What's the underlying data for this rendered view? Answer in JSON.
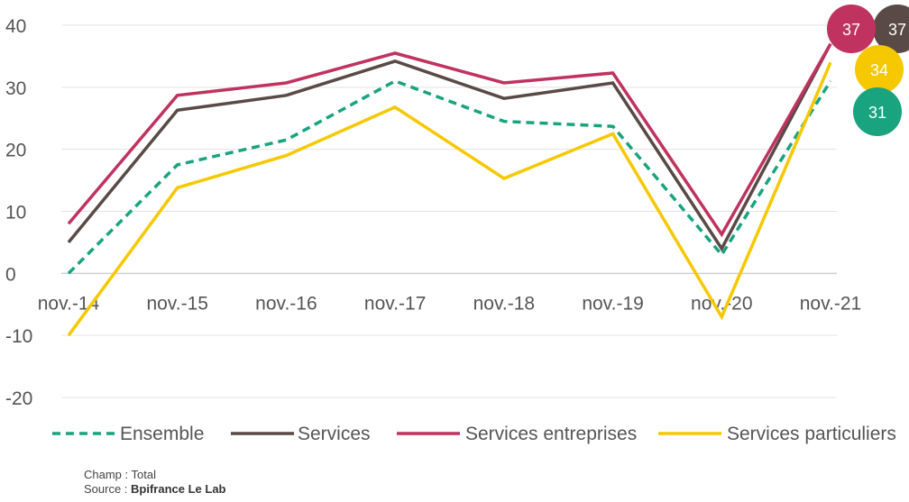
{
  "chart_data": {
    "type": "line",
    "categories": [
      "nov.-14",
      "nov.-15",
      "nov.-16",
      "nov.-17",
      "nov.-18",
      "nov.-19",
      "nov.-20",
      "nov.-21"
    ],
    "ylim": [
      -20,
      40
    ],
    "yticks": [
      40,
      30,
      20,
      10,
      0,
      -10,
      -20
    ],
    "grid": true,
    "legend_position": "bottom",
    "series": [
      {
        "name": "Ensemble",
        "color": "#1aa37f",
        "dashed": true,
        "values": [
          0,
          17.5,
          21.5,
          31,
          24.5,
          23.7,
          3,
          31
        ]
      },
      {
        "name": "Services",
        "color": "#5a4a45",
        "dashed": false,
        "values": [
          5,
          26.3,
          28.7,
          34.2,
          28.2,
          30.7,
          4,
          37
        ]
      },
      {
        "name": "Services entreprises",
        "color": "#c0325f",
        "dashed": false,
        "values": [
          8,
          28.7,
          30.7,
          35.5,
          30.7,
          32.3,
          6.3,
          37
        ]
      },
      {
        "name": "Services particuliers",
        "color": "#f5c800",
        "dashed": false,
        "values": [
          -10,
          13.8,
          19,
          26.8,
          15.3,
          22.5,
          -7,
          34
        ]
      }
    ],
    "end_labels": [
      {
        "series": "Services entreprises",
        "text": "37",
        "color": "#c0325f"
      },
      {
        "series": "Services",
        "text": "37",
        "color": "#5a4a45"
      },
      {
        "series": "Services particuliers",
        "text": "34",
        "color": "#f5c800"
      },
      {
        "series": "Ensemble",
        "text": "31",
        "color": "#1aa37f"
      }
    ]
  },
  "footnote": {
    "champ": "Champ : Total",
    "source_prefix": "Source : ",
    "source_name": "Bpifrance Le Lab"
  }
}
